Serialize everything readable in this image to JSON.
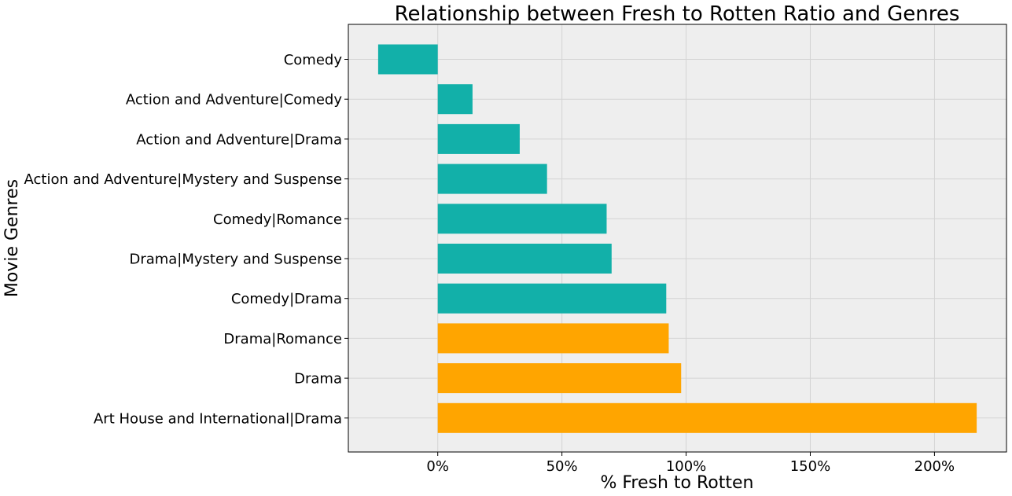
{
  "chart_data": {
    "type": "bar",
    "orientation": "horizontal",
    "title": "Relationship between Fresh to Rotten Ratio and Genres",
    "xlabel": "% Fresh to Rotten",
    "ylabel": "Movie Genres",
    "xlim": [
      -36,
      229
    ],
    "xticks": [
      0,
      50,
      100,
      150,
      200
    ],
    "xtick_labels": [
      "0%",
      "50%",
      "100%",
      "150%",
      "200%"
    ],
    "grid": true,
    "categories": [
      "Comedy",
      "Action and Adventure|Comedy",
      "Action and Adventure|Drama",
      "Action and Adventure|Mystery and Suspense",
      "Comedy|Romance",
      "Drama|Mystery and Suspense",
      "Comedy|Drama",
      "Drama|Romance",
      "Drama",
      "Art House and International|Drama"
    ],
    "values": [
      -24,
      14,
      33,
      44,
      68,
      70,
      92,
      93,
      98,
      217
    ],
    "bar_colors": [
      "#12b0a9",
      "#12b0a9",
      "#12b0a9",
      "#12b0a9",
      "#12b0a9",
      "#12b0a9",
      "#12b0a9",
      "#ffa500",
      "#ffa500",
      "#ffa500"
    ]
  },
  "colors": {
    "plot_background": "#eeeeee",
    "grid": "#d4d4d4",
    "teal": "#12b0a9",
    "orange": "#ffa500"
  }
}
